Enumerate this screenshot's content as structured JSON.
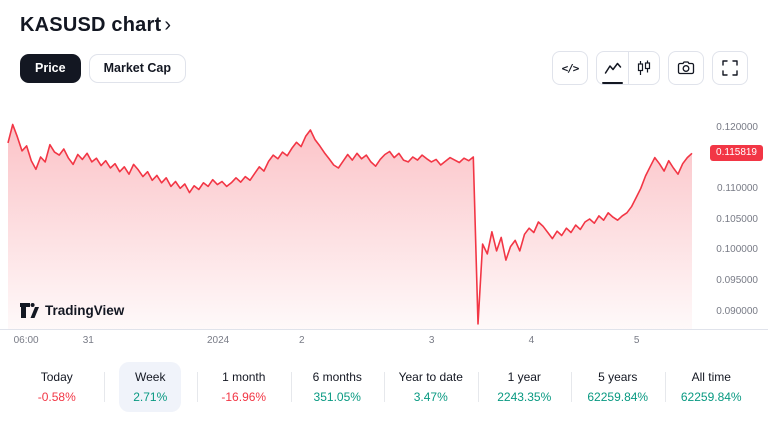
{
  "header": {
    "title": "KASUSD chart",
    "chevron": "›"
  },
  "tabs": {
    "price": "Price",
    "market_cap": "Market Cap"
  },
  "toolbar": {
    "embed_glyph": "</>",
    "icons": [
      "embed-code",
      "area-chart",
      "candlestick-chart",
      "snapshot-camera",
      "fullscreen"
    ]
  },
  "watermark": "TradingView",
  "colors": {
    "line": "#F23645",
    "badge": "#F23645",
    "negative": "#F23645",
    "positive": "#089981",
    "text": "#131722",
    "muted": "#787B86",
    "border": "#E0E3EB",
    "selected_bg": "#F0F3FA"
  },
  "chart_data": {
    "type": "area",
    "title": "KASUSD price",
    "current_price": "0.115819",
    "legend_position": "none",
    "grid": false,
    "ylim": [
      0.087,
      0.124
    ],
    "y_ticks": [
      {
        "label": "0.120000",
        "value": 0.12
      },
      {
        "label": "0.110000",
        "value": 0.11
      },
      {
        "label": "0.105000",
        "value": 0.105
      },
      {
        "label": "0.100000",
        "value": 0.1
      },
      {
        "label": "0.095000",
        "value": 0.095
      },
      {
        "label": "0.090000",
        "value": 0.09
      }
    ],
    "x_ticks": [
      {
        "label": "06:00",
        "pos": 0.034
      },
      {
        "label": "31",
        "pos": 0.115
      },
      {
        "label": "2024",
        "pos": 0.284
      },
      {
        "label": "2",
        "pos": 0.393
      },
      {
        "label": "3",
        "pos": 0.562
      },
      {
        "label": "4",
        "pos": 0.692
      },
      {
        "label": "5",
        "pos": 0.829
      }
    ],
    "prices": [
      0.1175,
      0.1205,
      0.1185,
      0.1162,
      0.117,
      0.1146,
      0.1132,
      0.1152,
      0.1144,
      0.1172,
      0.116,
      0.1155,
      0.1165,
      0.115,
      0.114,
      0.1156,
      0.1148,
      0.1158,
      0.1144,
      0.115,
      0.1138,
      0.1146,
      0.1134,
      0.1141,
      0.1128,
      0.1136,
      0.1124,
      0.114,
      0.1131,
      0.112,
      0.1128,
      0.1114,
      0.1122,
      0.111,
      0.1118,
      0.1104,
      0.1112,
      0.1101,
      0.1108,
      0.1094,
      0.1105,
      0.1099,
      0.111,
      0.1104,
      0.1115,
      0.1107,
      0.1112,
      0.1104,
      0.111,
      0.1118,
      0.1111,
      0.112,
      0.1114,
      0.1125,
      0.1136,
      0.1129,
      0.1145,
      0.1155,
      0.1149,
      0.116,
      0.1154,
      0.1166,
      0.1176,
      0.1169,
      0.1186,
      0.1196,
      0.118,
      0.117,
      0.1159,
      0.1149,
      0.1139,
      0.1134,
      0.1145,
      0.1156,
      0.1147,
      0.1158,
      0.1149,
      0.1155,
      0.1144,
      0.1137,
      0.1148,
      0.1156,
      0.1161,
      0.1151,
      0.1158,
      0.1147,
      0.1144,
      0.1152,
      0.1147,
      0.1155,
      0.1149,
      0.1144,
      0.1148,
      0.1139,
      0.1145,
      0.1151,
      0.1147,
      0.1143,
      0.115,
      0.1146,
      0.1152,
      0.088,
      0.101,
      0.0994,
      0.103,
      0.0999,
      0.1021,
      0.0984,
      0.1006,
      0.1016,
      0.0999,
      0.1026,
      0.1036,
      0.1029,
      0.1046,
      0.1039,
      0.1029,
      0.1019,
      0.1031,
      0.1024,
      0.1036,
      0.1029,
      0.1041,
      0.1034,
      0.1046,
      0.1051,
      0.1044,
      0.1056,
      0.1049,
      0.1061,
      0.1054,
      0.1049,
      0.1056,
      0.1061,
      0.1071,
      0.1086,
      0.1101,
      0.1121,
      0.1136,
      0.1151,
      0.1141,
      0.1129,
      0.1146,
      0.1134,
      0.1124,
      0.1141,
      0.1151,
      0.1158
    ]
  },
  "stats": [
    {
      "label": "Today",
      "value": "-0.58%",
      "direction": "down",
      "selected": false
    },
    {
      "label": "Week",
      "value": "2.71%",
      "direction": "up",
      "selected": true
    },
    {
      "label": "1 month",
      "value": "-16.96%",
      "direction": "down",
      "selected": false
    },
    {
      "label": "6 months",
      "value": "351.05%",
      "direction": "up",
      "selected": false
    },
    {
      "label": "Year to date",
      "value": "3.47%",
      "direction": "up",
      "selected": false
    },
    {
      "label": "1 year",
      "value": "2243.35%",
      "direction": "up",
      "selected": false
    },
    {
      "label": "5 years",
      "value": "62259.84%",
      "direction": "up",
      "selected": false
    },
    {
      "label": "All time",
      "value": "62259.84%",
      "direction": "up",
      "selected": false
    }
  ]
}
